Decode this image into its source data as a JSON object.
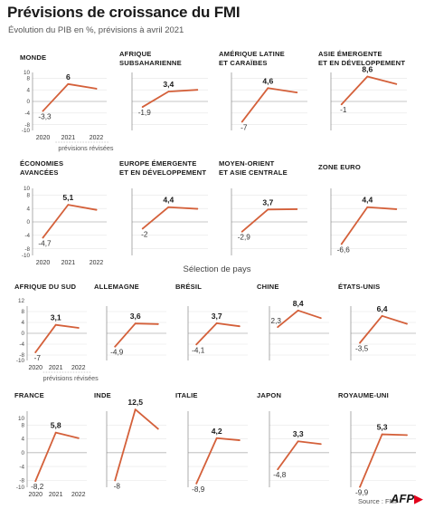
{
  "header": {
    "title": "Prévisions de croissance du FMI",
    "subtitle": "Évolution du PIB en %, prévisions à avril 2021"
  },
  "section_label": "Sélection de pays",
  "revised_note": "prévisions révisées",
  "source": "Source : FMI",
  "logo": "AFP",
  "colors": {
    "line": "#d4603a",
    "grid": "#e6e6e6",
    "zero": "#b5b5b5",
    "axis": "#888888"
  },
  "chart_data": [
    {
      "type": "line",
      "title": [
        "MONDE"
      ],
      "x": [
        "2020",
        "2021",
        "2022"
      ],
      "values": [
        -3.3,
        6,
        4.4
      ],
      "labels": [
        "-3,3",
        "6",
        ""
      ],
      "ylim": [
        -10,
        10
      ],
      "yticks": [
        "10",
        "8",
        "4",
        "0",
        "-4",
        "-8",
        "-10"
      ]
    },
    {
      "type": "line",
      "title": [
        "AFRIQUE",
        "SUBSAHARIENNE"
      ],
      "x": [
        "2020",
        "2021",
        "2022"
      ],
      "values": [
        -1.9,
        3.4,
        4
      ],
      "labels": [
        "-1,9",
        "3,4",
        ""
      ],
      "ylim": [
        -10,
        10
      ]
    },
    {
      "type": "line",
      "title": [
        "AMÉRIQUE LATINE",
        "ET CARAÏBES"
      ],
      "x": [
        "2020",
        "2021",
        "2022"
      ],
      "values": [
        -7,
        4.6,
        3.1
      ],
      "labels": [
        "-7",
        "4,6",
        ""
      ],
      "ylim": [
        -10,
        10
      ]
    },
    {
      "type": "line",
      "title": [
        "ASIE ÉMERGENTE",
        "ET EN DÉVELOPPEMENT"
      ],
      "x": [
        "2020",
        "2021",
        "2022"
      ],
      "values": [
        -1,
        8.6,
        6
      ],
      "labels": [
        "-1",
        "8,6",
        ""
      ],
      "ylim": [
        -10,
        10
      ]
    },
    {
      "type": "line",
      "title": [
        "ÉCONOMIES",
        "AVANCÉES"
      ],
      "x": [
        "2020",
        "2021",
        "2022"
      ],
      "values": [
        -4.7,
        5.1,
        3.6
      ],
      "labels": [
        "-4,7",
        "5,1",
        ""
      ],
      "ylim": [
        -10,
        10
      ],
      "yticks": [
        "10",
        "8",
        "4",
        "0",
        "-4",
        "-8",
        "-10"
      ]
    },
    {
      "type": "line",
      "title": [
        "EUROPE ÉMERGENTE",
        "ET EN DÉVELOPPEMENT"
      ],
      "x": [
        "2020",
        "2021",
        "2022"
      ],
      "values": [
        -2,
        4.4,
        3.9
      ],
      "labels": [
        "-2",
        "4,4",
        ""
      ],
      "ylim": [
        -10,
        10
      ]
    },
    {
      "type": "line",
      "title": [
        "MOYEN-ORIENT",
        "ET ASIE CENTRALE"
      ],
      "x": [
        "2020",
        "2021",
        "2022"
      ],
      "values": [
        -2.9,
        3.7,
        3.8
      ],
      "labels": [
        "-2,9",
        "3,7",
        ""
      ],
      "ylim": [
        -10,
        10
      ]
    },
    {
      "type": "line",
      "title": [
        "ZONE EURO"
      ],
      "x": [
        "2020",
        "2021",
        "2022"
      ],
      "values": [
        -6.6,
        4.4,
        3.8
      ],
      "labels": [
        "-6,6",
        "4,4",
        ""
      ],
      "ylim": [
        -10,
        10
      ]
    },
    {
      "type": "line",
      "title": [
        "AFRIQUE DU SUD"
      ],
      "x": [
        "2020",
        "2021",
        "2022"
      ],
      "values": [
        -7,
        3.1,
        2
      ],
      "labels": [
        "-7",
        "3,1",
        ""
      ],
      "ylim": [
        -10,
        10
      ],
      "yticks": [
        "12",
        "8",
        "4",
        "0",
        "-4",
        "-8",
        "-10"
      ]
    },
    {
      "type": "line",
      "title": [
        "ALLEMAGNE"
      ],
      "x": [
        "2020",
        "2021",
        "2022"
      ],
      "values": [
        -4.9,
        3.6,
        3.4
      ],
      "labels": [
        "-4,9",
        "3,6",
        ""
      ],
      "ylim": [
        -10,
        10
      ]
    },
    {
      "type": "line",
      "title": [
        "BRÉSIL"
      ],
      "x": [
        "2020",
        "2021",
        "2022"
      ],
      "values": [
        -4.1,
        3.7,
        2.6
      ],
      "labels": [
        "-4,1",
        "3,7",
        ""
      ],
      "ylim": [
        -10,
        10
      ]
    },
    {
      "type": "line",
      "title": [
        "CHINE"
      ],
      "x": [
        "2020",
        "2021",
        "2022"
      ],
      "values": [
        2.3,
        8.4,
        5.6
      ],
      "labels": [
        "2,3",
        "8,4",
        ""
      ],
      "ylim": [
        -10,
        10
      ]
    },
    {
      "type": "line",
      "title": [
        "ÉTATS-UNIS"
      ],
      "x": [
        "2020",
        "2021",
        "2022"
      ],
      "values": [
        -3.5,
        6.4,
        3.5
      ],
      "labels": [
        "-3,5",
        "6,4",
        ""
      ],
      "ylim": [
        -10,
        10
      ]
    },
    {
      "type": "line",
      "title": [
        "FRANCE"
      ],
      "x": [
        "2020",
        "2021",
        "2022"
      ],
      "values": [
        -8.2,
        5.8,
        4.2
      ],
      "labels": [
        "-8,2",
        "5,8",
        ""
      ],
      "ylim": [
        -10,
        12
      ],
      "yticks": [
        "10",
        "8",
        "4",
        "0",
        "-4",
        "-8",
        "-10"
      ]
    },
    {
      "type": "line",
      "title": [
        "INDE"
      ],
      "x": [
        "2020",
        "2021",
        "2022"
      ],
      "values": [
        -8,
        12.5,
        6.9
      ],
      "labels": [
        "-8",
        "12,5",
        ""
      ],
      "ylim": [
        -10,
        12
      ]
    },
    {
      "type": "line",
      "title": [
        "ITALIE"
      ],
      "x": [
        "2020",
        "2021",
        "2022"
      ],
      "values": [
        -8.9,
        4.2,
        3.6
      ],
      "labels": [
        "-8,9",
        "4,2",
        ""
      ],
      "ylim": [
        -10,
        12
      ]
    },
    {
      "type": "line",
      "title": [
        "JAPON"
      ],
      "x": [
        "2020",
        "2021",
        "2022"
      ],
      "values": [
        -4.8,
        3.3,
        2.5
      ],
      "labels": [
        "-4,8",
        "3,3",
        ""
      ],
      "ylim": [
        -10,
        12
      ]
    },
    {
      "type": "line",
      "title": [
        "ROYAUME-UNI"
      ],
      "x": [
        "2020",
        "2021",
        "2022"
      ],
      "values": [
        -9.9,
        5.3,
        5.1
      ],
      "labels": [
        "-9,9",
        "5,3",
        ""
      ],
      "ylim": [
        -10,
        12
      ]
    }
  ]
}
